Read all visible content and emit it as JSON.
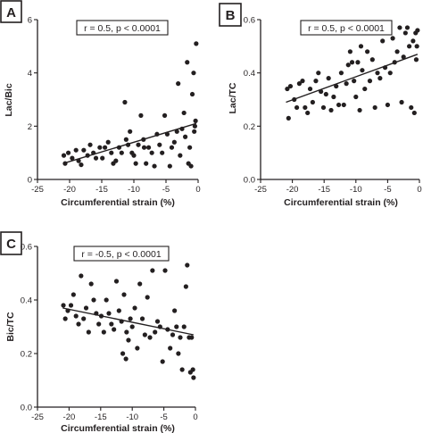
{
  "chart_data": [
    {
      "type": "scatter",
      "panel_label": "A",
      "annotation": "r = 0.5, p < 0.0001",
      "xlabel": "Circumferential strain  (%)",
      "ylabel": "Lac/Bic",
      "xlim": [
        -25,
        0
      ],
      "ylim": [
        0,
        6
      ],
      "xticks": [
        -25,
        -20,
        -15,
        -10,
        -5,
        0
      ],
      "yticks": [
        0,
        2,
        4,
        6
      ],
      "xtick_labels": [
        "-25",
        "-20",
        "-15",
        "-10",
        "-5",
        "0"
      ],
      "ytick_labels": [
        "0",
        "2",
        "4",
        "6"
      ],
      "fit_line": {
        "x": [
          -21,
          -0.3
        ],
        "y": [
          0.6,
          2.1
        ]
      },
      "points": [
        [
          -20.9,
          0.9
        ],
        [
          -20.7,
          0.6
        ],
        [
          -20.2,
          1.0
        ],
        [
          -19.6,
          0.8
        ],
        [
          -19.0,
          1.1
        ],
        [
          -18.6,
          0.7
        ],
        [
          -18.2,
          0.55
        ],
        [
          -17.8,
          1.1
        ],
        [
          -17.2,
          0.9
        ],
        [
          -16.8,
          1.3
        ],
        [
          -16.3,
          1.0
        ],
        [
          -15.9,
          0.8
        ],
        [
          -15.3,
          1.2
        ],
        [
          -14.9,
          0.8
        ],
        [
          -14.5,
          1.2
        ],
        [
          -14.0,
          1.4
        ],
        [
          -13.5,
          1.0
        ],
        [
          -13.2,
          0.6
        ],
        [
          -12.8,
          0.7
        ],
        [
          -12.3,
          1.2
        ],
        [
          -11.9,
          1.0
        ],
        [
          -11.4,
          2.9
        ],
        [
          -11.2,
          1.5
        ],
        [
          -10.9,
          1.3
        ],
        [
          -10.6,
          1.8
        ],
        [
          -10.3,
          1.0
        ],
        [
          -10.0,
          0.9
        ],
        [
          -9.7,
          0.6
        ],
        [
          -9.3,
          1.3
        ],
        [
          -8.9,
          2.4
        ],
        [
          -8.5,
          1.5
        ],
        [
          -8.1,
          0.6
        ],
        [
          -7.7,
          1.2
        ],
        [
          -7.2,
          1.0
        ],
        [
          -6.8,
          0.5
        ],
        [
          -6.4,
          1.7
        ],
        [
          -6.0,
          1.3
        ],
        [
          -5.6,
          1.0
        ],
        [
          -5.2,
          2.4
        ],
        [
          -4.8,
          1.7
        ],
        [
          -4.4,
          0.5
        ],
        [
          -4.1,
          1.2
        ],
        [
          -3.7,
          1.4
        ],
        [
          -3.3,
          1.8
        ],
        [
          -3.1,
          3.6
        ],
        [
          -2.8,
          0.9
        ],
        [
          -2.5,
          1.9
        ],
        [
          -2.2,
          2.5
        ],
        [
          -2.0,
          1.6
        ],
        [
          -1.7,
          4.4
        ],
        [
          -1.5,
          0.6
        ],
        [
          -1.3,
          1.2
        ],
        [
          -1.1,
          0.5
        ],
        [
          -0.9,
          3.2
        ],
        [
          -0.7,
          4.0
        ],
        [
          -0.6,
          1.8
        ],
        [
          -0.4,
          2.2
        ],
        [
          -0.3,
          5.1
        ],
        [
          -0.5,
          2.0
        ],
        [
          -8.4,
          1.2
        ]
      ]
    },
    {
      "type": "scatter",
      "panel_label": "B",
      "annotation": "r = 0.5, p < 0.0001",
      "xlabel": "Circumferential strain  (%)",
      "ylabel": "Lac/TC",
      "xlim": [
        -25,
        0
      ],
      "ylim": [
        0,
        0.6
      ],
      "xticks": [
        -25,
        -20,
        -15,
        -10,
        -5,
        0
      ],
      "yticks": [
        0,
        0.2,
        0.4,
        0.6
      ],
      "xtick_labels": [
        "-25",
        "-20",
        "-15",
        "-10",
        "-5",
        "0"
      ],
      "ytick_labels": [
        "0.0",
        "0.2",
        "0.4",
        "0.6"
      ],
      "fit_line": {
        "x": [
          -21,
          -0.3
        ],
        "y": [
          0.29,
          0.47
        ]
      },
      "points": [
        [
          -20.8,
          0.34
        ],
        [
          -20.6,
          0.23
        ],
        [
          -20.3,
          0.35
        ],
        [
          -19.7,
          0.3
        ],
        [
          -19.3,
          0.27
        ],
        [
          -18.9,
          0.36
        ],
        [
          -18.4,
          0.37
        ],
        [
          -18.0,
          0.27
        ],
        [
          -17.6,
          0.25
        ],
        [
          -17.2,
          0.34
        ],
        [
          -16.8,
          0.29
        ],
        [
          -16.3,
          0.37
        ],
        [
          -15.9,
          0.4
        ],
        [
          -15.5,
          0.33
        ],
        [
          -15.1,
          0.27
        ],
        [
          -14.7,
          0.32
        ],
        [
          -14.3,
          0.38
        ],
        [
          -13.9,
          0.26
        ],
        [
          -13.5,
          0.31
        ],
        [
          -13.1,
          0.35
        ],
        [
          -12.7,
          0.28
        ],
        [
          -12.3,
          0.4
        ],
        [
          -11.9,
          0.28
        ],
        [
          -11.5,
          0.36
        ],
        [
          -11.2,
          0.43
        ],
        [
          -10.9,
          0.48
        ],
        [
          -10.6,
          0.44
        ],
        [
          -10.3,
          0.37
        ],
        [
          -10.0,
          0.31
        ],
        [
          -9.7,
          0.44
        ],
        [
          -9.4,
          0.26
        ],
        [
          -9.0,
          0.41
        ],
        [
          -8.6,
          0.34
        ],
        [
          -8.2,
          0.48
        ],
        [
          -7.8,
          0.37
        ],
        [
          -7.4,
          0.45
        ],
        [
          -7.0,
          0.27
        ],
        [
          -6.6,
          0.4
        ],
        [
          -6.2,
          0.38
        ],
        [
          -5.8,
          0.52
        ],
        [
          -5.4,
          0.42
        ],
        [
          -5.0,
          0.28
        ],
        [
          -4.6,
          0.4
        ],
        [
          -4.2,
          0.53
        ],
        [
          -3.9,
          0.44
        ],
        [
          -3.5,
          0.48
        ],
        [
          -3.1,
          0.57
        ],
        [
          -2.8,
          0.29
        ],
        [
          -2.5,
          0.46
        ],
        [
          -2.2,
          0.55
        ],
        [
          -1.9,
          0.57
        ],
        [
          -1.6,
          0.5
        ],
        [
          -1.3,
          0.27
        ],
        [
          -1.0,
          0.52
        ],
        [
          -0.8,
          0.25
        ],
        [
          -0.6,
          0.55
        ],
        [
          -0.4,
          0.5
        ],
        [
          -0.3,
          0.56
        ],
        [
          -0.5,
          0.45
        ],
        [
          -9.2,
          0.5
        ]
      ]
    },
    {
      "type": "scatter",
      "panel_label": "C",
      "annotation": "r = -0.5, p < 0.0001",
      "xlabel": "Circumferential strain  (%)",
      "ylabel": "Bic/TC",
      "xlim": [
        -25,
        0
      ],
      "ylim": [
        0,
        0.6
      ],
      "xticks": [
        -25,
        -20,
        -15,
        -10,
        -5,
        0
      ],
      "yticks": [
        0,
        0.2,
        0.4,
        0.6
      ],
      "xtick_labels": [
        "-25",
        "-20",
        "-15",
        "-10",
        "-5",
        "0"
      ],
      "ytick_labels": [
        "0.0",
        "0.2",
        "0.4",
        "0.6"
      ],
      "fit_line": {
        "x": [
          -21,
          -0.3
        ],
        "y": [
          0.37,
          0.27
        ]
      },
      "points": [
        [
          -20.9,
          0.38
        ],
        [
          -20.6,
          0.33
        ],
        [
          -20.2,
          0.36
        ],
        [
          -19.7,
          0.38
        ],
        [
          -19.3,
          0.42
        ],
        [
          -18.9,
          0.34
        ],
        [
          -18.5,
          0.31
        ],
        [
          -18.1,
          0.49
        ],
        [
          -17.7,
          0.33
        ],
        [
          -17.3,
          0.37
        ],
        [
          -16.9,
          0.28
        ],
        [
          -16.5,
          0.46
        ],
        [
          -16.1,
          0.4
        ],
        [
          -15.7,
          0.35
        ],
        [
          -15.3,
          0.31
        ],
        [
          -14.9,
          0.34
        ],
        [
          -14.5,
          0.28
        ],
        [
          -14.1,
          0.4
        ],
        [
          -13.7,
          0.35
        ],
        [
          -13.3,
          0.31
        ],
        [
          -12.9,
          0.29
        ],
        [
          -12.5,
          0.47
        ],
        [
          -12.1,
          0.36
        ],
        [
          -11.7,
          0.32
        ],
        [
          -11.3,
          0.42
        ],
        [
          -10.9,
          0.28
        ],
        [
          -10.6,
          0.25
        ],
        [
          -10.3,
          0.33
        ],
        [
          -10.0,
          0.3
        ],
        [
          -9.6,
          0.37
        ],
        [
          -9.2,
          0.22
        ],
        [
          -8.8,
          0.46
        ],
        [
          -8.4,
          0.33
        ],
        [
          -8.0,
          0.27
        ],
        [
          -7.6,
          0.41
        ],
        [
          -7.2,
          0.26
        ],
        [
          -6.8,
          0.51
        ],
        [
          -6.4,
          0.28
        ],
        [
          -6.0,
          0.32
        ],
        [
          -5.6,
          0.3
        ],
        [
          -5.2,
          0.17
        ],
        [
          -4.8,
          0.51
        ],
        [
          -4.4,
          0.29
        ],
        [
          -4.0,
          0.22
        ],
        [
          -3.6,
          0.27
        ],
        [
          -3.3,
          0.36
        ],
        [
          -3.0,
          0.3
        ],
        [
          -2.7,
          0.2
        ],
        [
          -2.4,
          0.26
        ],
        [
          -2.1,
          0.14
        ],
        [
          -1.8,
          0.3
        ],
        [
          -1.5,
          0.45
        ],
        [
          -1.3,
          0.53
        ],
        [
          -1.0,
          0.26
        ],
        [
          -0.8,
          0.13
        ],
        [
          -0.6,
          0.26
        ],
        [
          -0.4,
          0.14
        ],
        [
          -0.3,
          0.11
        ],
        [
          -11.5,
          0.2
        ],
        [
          -11.0,
          0.18
        ]
      ]
    }
  ]
}
